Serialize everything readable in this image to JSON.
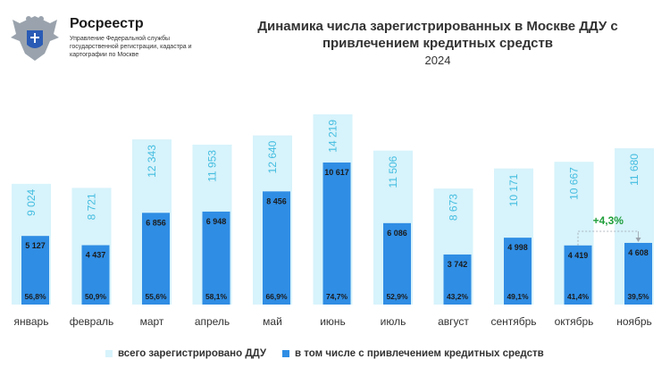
{
  "org": {
    "name": "Росреестр",
    "subtitle": "Управление Федеральной службы государственной регистрации, кадастра и картографии по Москве"
  },
  "colors": {
    "total": "#d7f3fb",
    "credit": "#2f8de4",
    "total_label": "#44bde0",
    "credit_label": "#1a1a1a",
    "delta": "#1f9e3a"
  },
  "chart_data": {
    "type": "bar",
    "title": "Динамика числа зарегистрированных в Москве ДДУ с привлечением кредитных средств",
    "subtitle": "2024",
    "categories": [
      "январь",
      "февраль",
      "март",
      "апрель",
      "май",
      "июнь",
      "июль",
      "август",
      "сентябрь",
      "октябрь",
      "ноябрь"
    ],
    "series": [
      {
        "name": "всего зарегистрировано ДДУ",
        "values": [
          9024,
          8721,
          12343,
          11953,
          12640,
          14219,
          11506,
          8673,
          10171,
          10667,
          11680
        ],
        "labels": [
          "9 024",
          "8 721",
          "12 343",
          "11 953",
          "12 640",
          "14 219",
          "11 506",
          "8 673",
          "10 171",
          "10 667",
          "11 680"
        ]
      },
      {
        "name": "в том числе с привлечением кредитных средств",
        "values": [
          5127,
          4437,
          6856,
          6948,
          8456,
          10617,
          6086,
          3742,
          4998,
          4419,
          4608
        ],
        "labels": [
          "5 127",
          "4 437",
          "6 856",
          "6 948",
          "8 456",
          "10 617",
          "6 086",
          "3 742",
          "4 998",
          "4 419",
          "4 608"
        ]
      }
    ],
    "shares": [
      "56,8%",
      "50,9%",
      "55,6%",
      "58,1%",
      "66,9%",
      "74,7%",
      "52,9%",
      "43,2%",
      "49,1%",
      "41,4%",
      "39,5%"
    ],
    "annotation": "+4,3%",
    "legend_position": "bottom",
    "grid": false
  }
}
